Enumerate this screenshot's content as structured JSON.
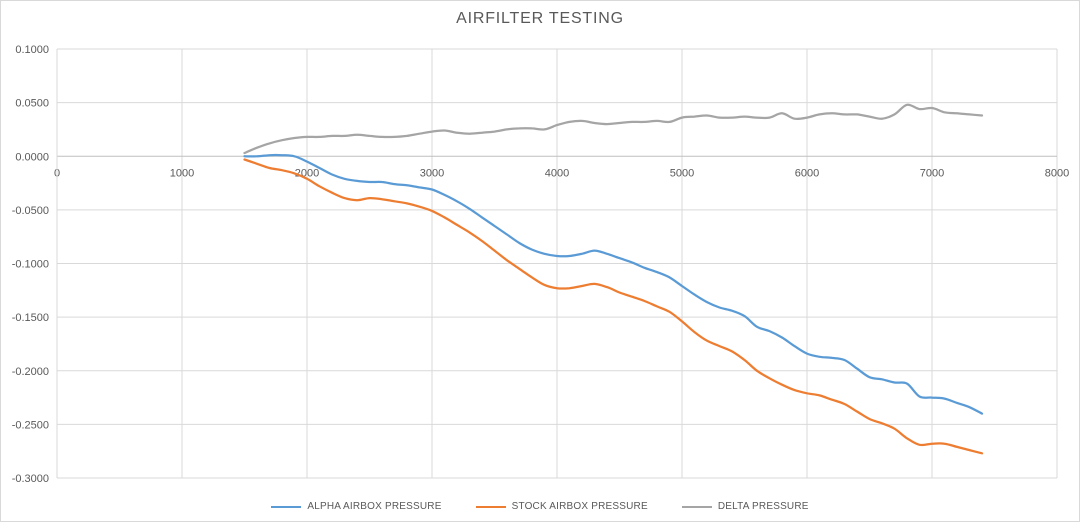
{
  "chart": {
    "title": "AIRFILTER TESTING"
  },
  "colors": {
    "background": "#ffffff",
    "border": "#d9d9d9",
    "gridline": "#d9d9d9",
    "zero_axis_line": "#bfbfbf",
    "tick_text": "#595959",
    "title_text": "#595959",
    "series_blue": "#5B9BD5",
    "series_orange": "#ED7D31",
    "series_gray": "#A5A5A5"
  },
  "chart_data": {
    "type": "line",
    "title": "AIRFILTER TESTING",
    "grid": true,
    "legend_position": "bottom",
    "x_axis": {
      "min": 0,
      "max": 8000,
      "tick_interval": 1000,
      "tick_labels": [
        "0",
        "1000",
        "2000",
        "3000",
        "4000",
        "5000",
        "6000",
        "7000",
        "8000"
      ]
    },
    "y_axis": {
      "min": -0.3,
      "max": 0.1,
      "tick_interval": 0.05,
      "tick_labels": [
        "0.1000",
        "0.0500",
        "0.0000",
        "-0.0500",
        "-0.1000",
        "-0.1500",
        "-0.2000",
        "-0.2500",
        "-0.3000"
      ]
    },
    "x": [
      1500,
      1600,
      1700,
      1800,
      1900,
      2000,
      2100,
      2200,
      2300,
      2400,
      2500,
      2600,
      2700,
      2800,
      2900,
      3000,
      3100,
      3200,
      3300,
      3400,
      3500,
      3600,
      3700,
      3800,
      3900,
      4000,
      4100,
      4200,
      4300,
      4400,
      4500,
      4600,
      4700,
      4800,
      4900,
      5000,
      5100,
      5200,
      5300,
      5400,
      5500,
      5600,
      5700,
      5800,
      5900,
      6000,
      6100,
      6200,
      6300,
      6400,
      6500,
      6600,
      6700,
      6800,
      6900,
      7000,
      7100,
      7200,
      7300,
      7400
    ],
    "series": [
      {
        "name": "ALPHA AIRBOX PRESSURE",
        "color": "#5B9BD5",
        "values": [
          0.0,
          0.0,
          0.001,
          0.001,
          0.0,
          -0.005,
          -0.011,
          -0.017,
          -0.021,
          -0.023,
          -0.024,
          -0.024,
          -0.026,
          -0.027,
          -0.029,
          -0.031,
          -0.036,
          -0.042,
          -0.049,
          -0.057,
          -0.065,
          -0.073,
          -0.081,
          -0.087,
          -0.091,
          -0.093,
          -0.093,
          -0.091,
          -0.088,
          -0.091,
          -0.095,
          -0.099,
          -0.104,
          -0.108,
          -0.113,
          -0.121,
          -0.129,
          -0.136,
          -0.141,
          -0.144,
          -0.149,
          -0.159,
          -0.163,
          -0.169,
          -0.177,
          -0.184,
          -0.187,
          -0.188,
          -0.19,
          -0.198,
          -0.206,
          -0.208,
          -0.211,
          -0.212,
          -0.224,
          -0.225,
          -0.226,
          -0.23,
          -0.234,
          -0.24
        ]
      },
      {
        "name": "STOCK AIRBOX PRESSURE",
        "color": "#ED7D31",
        "values": [
          -0.003,
          -0.007,
          -0.011,
          -0.013,
          -0.016,
          -0.021,
          -0.028,
          -0.034,
          -0.039,
          -0.041,
          -0.039,
          -0.04,
          -0.042,
          -0.044,
          -0.047,
          -0.051,
          -0.057,
          -0.064,
          -0.071,
          -0.079,
          -0.088,
          -0.097,
          -0.105,
          -0.113,
          -0.12,
          -0.123,
          -0.123,
          -0.121,
          -0.119,
          -0.122,
          -0.127,
          -0.131,
          -0.135,
          -0.14,
          -0.145,
          -0.154,
          -0.164,
          -0.172,
          -0.177,
          -0.182,
          -0.19,
          -0.2,
          -0.207,
          -0.213,
          -0.218,
          -0.221,
          -0.223,
          -0.227,
          -0.231,
          -0.238,
          -0.245,
          -0.249,
          -0.254,
          -0.263,
          -0.269,
          -0.268,
          -0.268,
          -0.271,
          -0.274,
          -0.277
        ]
      },
      {
        "name": "DELTA PRESSURE",
        "color": "#A5A5A5",
        "values": [
          0.003,
          0.008,
          0.012,
          0.015,
          0.017,
          0.018,
          0.018,
          0.019,
          0.019,
          0.02,
          0.019,
          0.018,
          0.018,
          0.019,
          0.021,
          0.023,
          0.024,
          0.022,
          0.021,
          0.022,
          0.023,
          0.025,
          0.026,
          0.026,
          0.025,
          0.029,
          0.032,
          0.033,
          0.031,
          0.03,
          0.031,
          0.032,
          0.032,
          0.033,
          0.032,
          0.036,
          0.037,
          0.038,
          0.036,
          0.036,
          0.037,
          0.036,
          0.036,
          0.04,
          0.035,
          0.036,
          0.039,
          0.04,
          0.039,
          0.039,
          0.037,
          0.035,
          0.039,
          0.048,
          0.044,
          0.045,
          0.041,
          0.04,
          0.039,
          0.038
        ]
      }
    ]
  }
}
